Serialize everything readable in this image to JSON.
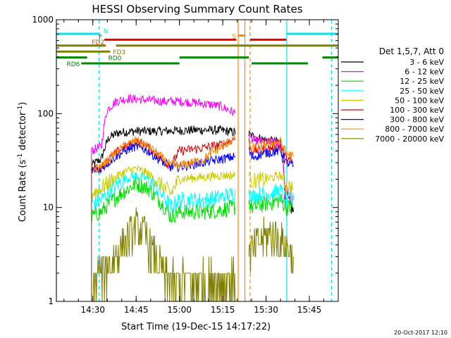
{
  "chart_data": {
    "type": "line",
    "title": "HESSI Observing Summary Count Rates",
    "xlabel": "Start Time (19-Dec-15 14:17:22)",
    "ylabel_parts": [
      "Count Rate (s",
      "-1",
      " detector",
      "-1",
      ")"
    ],
    "y_scale": "log",
    "ylim": [
      1,
      1000
    ],
    "xlim": [
      "14:17:22",
      "15:55:00"
    ],
    "x_ticks": [
      "14:30",
      "14:45",
      "15:00",
      "15:15",
      "15:30",
      "15:45"
    ],
    "y_ticks": [
      "1",
      "10",
      "100",
      "1000"
    ],
    "legend_title": "Det 1,5,7, Att 0",
    "legend_position": "right",
    "timestamp": "20-Oct-2017 12:10",
    "series": [
      {
        "name": "3 - 6 keV",
        "color": "#000000",
        "points": [
          [
            "14:29:30",
            28
          ],
          [
            "14:33:00",
            33
          ],
          [
            "14:35:30",
            55
          ],
          [
            "14:39:00",
            63
          ],
          [
            "14:45:00",
            65
          ],
          [
            "14:52:00",
            65
          ],
          [
            "15:00:00",
            66
          ],
          [
            "15:08:00",
            67
          ],
          [
            "15:15:00",
            66
          ],
          [
            "15:19:30",
            63
          ],
          [
            "15:24:00",
            60
          ],
          [
            "15:25:00",
            58
          ],
          [
            "15:30:00",
            52
          ],
          [
            "15:35:00",
            50
          ],
          [
            "15:36:30",
            15
          ],
          [
            "15:38:00",
            11
          ],
          [
            "15:39:30",
            9
          ]
        ]
      },
      {
        "name": "6 - 12 keV",
        "color": "#ff00ff",
        "points": [
          [
            "14:29:30",
            40
          ],
          [
            "14:33:00",
            45
          ],
          [
            "14:35:00",
            110
          ],
          [
            "14:38:00",
            135
          ],
          [
            "14:42:00",
            145
          ],
          [
            "14:48:00",
            140
          ],
          [
            "14:55:00",
            135
          ],
          [
            "15:00:00",
            135
          ],
          [
            "15:08:00",
            128
          ],
          [
            "15:14:00",
            120
          ],
          [
            "15:19:30",
            100
          ],
          [
            "15:24:00",
            60
          ],
          [
            "15:25:00",
            52
          ],
          [
            "15:30:00",
            50
          ],
          [
            "15:35:00",
            49
          ],
          [
            "15:36:30",
            15
          ],
          [
            "15:39:00",
            13
          ]
        ]
      },
      {
        "name": "12 - 25 keV",
        "color": "#00dd00",
        "points": [
          [
            "14:29:30",
            8
          ],
          [
            "14:33:00",
            9
          ],
          [
            "14:37:00",
            12
          ],
          [
            "14:41:00",
            15
          ],
          [
            "14:45:00",
            18
          ],
          [
            "14:49:00",
            16
          ],
          [
            "14:53:00",
            12
          ],
          [
            "14:57:00",
            8
          ],
          [
            "15:00:00",
            9
          ],
          [
            "15:08:00",
            9
          ],
          [
            "15:15:00",
            9.5
          ],
          [
            "15:19:30",
            10
          ],
          [
            "15:24:00",
            12
          ],
          [
            "15:25:00",
            10
          ],
          [
            "15:30:00",
            11
          ],
          [
            "15:35:00",
            12
          ],
          [
            "15:37:00",
            10
          ],
          [
            "15:39:30",
            10
          ]
        ]
      },
      {
        "name": "25 - 50 keV",
        "color": "#00ffff",
        "points": [
          [
            "14:29:30",
            11
          ],
          [
            "14:33:00",
            12
          ],
          [
            "14:37:00",
            16
          ],
          [
            "14:41:00",
            20
          ],
          [
            "14:45:00",
            22
          ],
          [
            "14:49:00",
            20
          ],
          [
            "14:53:00",
            15
          ],
          [
            "14:57:00",
            10
          ],
          [
            "15:00:00",
            12
          ],
          [
            "15:08:00",
            12
          ],
          [
            "15:15:00",
            13
          ],
          [
            "15:19:30",
            14
          ],
          [
            "15:24:00",
            16
          ],
          [
            "15:25:00",
            13
          ],
          [
            "15:30:00",
            14
          ],
          [
            "15:35:00",
            15
          ],
          [
            "15:37:00",
            12
          ],
          [
            "15:39:30",
            12
          ]
        ]
      },
      {
        "name": "50 - 100 keV",
        "color": "#cccc00",
        "points": [
          [
            "14:29:30",
            14
          ],
          [
            "14:33:00",
            16
          ],
          [
            "14:37:00",
            20
          ],
          [
            "14:41:00",
            24
          ],
          [
            "14:45:00",
            26
          ],
          [
            "14:49:00",
            23
          ],
          [
            "14:53:00",
            18
          ],
          [
            "14:57:00",
            14
          ],
          [
            "15:00:00",
            20
          ],
          [
            "15:08:00",
            21
          ],
          [
            "15:15:00",
            22
          ],
          [
            "15:19:30",
            22
          ],
          [
            "15:24:00",
            24
          ],
          [
            "15:25:00",
            19
          ],
          [
            "15:30:00",
            20
          ],
          [
            "15:35:00",
            22
          ],
          [
            "15:37:00",
            17
          ],
          [
            "15:39:30",
            16
          ]
        ]
      },
      {
        "name": "100 - 300 keV",
        "color": "#dd0000",
        "points": [
          [
            "14:29:30",
            25
          ],
          [
            "14:33:00",
            27
          ],
          [
            "14:37:00",
            36
          ],
          [
            "14:41:00",
            44
          ],
          [
            "14:45:00",
            50
          ],
          [
            "14:49:00",
            44
          ],
          [
            "14:53:00",
            34
          ],
          [
            "14:57:00",
            27
          ],
          [
            "15:00:00",
            40
          ],
          [
            "15:08:00",
            43
          ],
          [
            "15:15:00",
            47
          ],
          [
            "15:19:30",
            55
          ],
          [
            "15:24:00",
            50
          ],
          [
            "15:25:00",
            40
          ],
          [
            "15:30:00",
            42
          ],
          [
            "15:35:00",
            45
          ],
          [
            "15:37:00",
            33
          ],
          [
            "15:39:30",
            30
          ]
        ]
      },
      {
        "name": "300 - 800 keV",
        "color": "#0000ff",
        "points": [
          [
            "14:29:30",
            25
          ],
          [
            "14:33:00",
            26
          ],
          [
            "14:37:00",
            33
          ],
          [
            "14:41:00",
            40
          ],
          [
            "14:45:00",
            45
          ],
          [
            "14:49:00",
            40
          ],
          [
            "14:53:00",
            32
          ],
          [
            "14:57:00",
            27
          ],
          [
            "15:00:00",
            27
          ],
          [
            "15:08:00",
            30
          ],
          [
            "15:15:00",
            33
          ],
          [
            "15:19:30",
            35
          ],
          [
            "15:24:00",
            42
          ],
          [
            "15:25:00",
            34
          ],
          [
            "15:30:00",
            38
          ],
          [
            "15:35:00",
            40
          ],
          [
            "15:37:00",
            30
          ],
          [
            "15:39:30",
            28
          ]
        ]
      },
      {
        "name": "800 - 7000 keV",
        "color": "#ff8800",
        "points": [
          [
            "14:29:30",
            26
          ],
          [
            "14:33:00",
            27
          ],
          [
            "14:37:00",
            36
          ],
          [
            "14:41:00",
            45
          ],
          [
            "14:45:00",
            52
          ],
          [
            "14:49:00",
            45
          ],
          [
            "14:53:00",
            36
          ],
          [
            "14:57:00",
            28
          ],
          [
            "15:00:00",
            28
          ],
          [
            "15:08:00",
            32
          ],
          [
            "15:15:00",
            45
          ],
          [
            "15:19:30",
            55
          ],
          [
            "15:24:00",
            45
          ],
          [
            "15:25:00",
            42
          ],
          [
            "15:30:00",
            48
          ],
          [
            "15:35:00",
            50
          ],
          [
            "15:37:00",
            38
          ],
          [
            "15:39:30",
            35
          ]
        ]
      },
      {
        "name": "7000 - 20000 keV",
        "color": "#808000",
        "points": [
          [
            "14:29:30",
            1
          ],
          [
            "14:32:00",
            2
          ],
          [
            "14:35:00",
            2.2
          ],
          [
            "14:38:00",
            3
          ],
          [
            "14:42:00",
            4.5
          ],
          [
            "14:45:00",
            6
          ],
          [
            "14:48:00",
            5
          ],
          [
            "14:51:00",
            3
          ],
          [
            "14:54:00",
            2
          ],
          [
            "14:57:00",
            1.6
          ],
          [
            "15:00:00",
            1.6
          ],
          [
            "15:08:00",
            1.6
          ],
          [
            "15:15:00",
            1.6
          ],
          [
            "15:19:30",
            1.7
          ],
          [
            "15:24:00",
            3
          ],
          [
            "15:27:00",
            4
          ],
          [
            "15:30:00",
            5
          ],
          [
            "15:33:00",
            5
          ],
          [
            "15:36:00",
            4
          ],
          [
            "15:39:30",
            3
          ]
        ]
      }
    ],
    "flag_bars": [
      {
        "label": "N",
        "color": "#00e5ee",
        "label_color": "#00e5ee",
        "segments": [
          [
            "14:17:22",
            "14:32:10"
          ],
          [
            "15:37:10",
            "15:55:00"
          ]
        ],
        "level": 0
      },
      {
        "label": "S",
        "color": "#ff8800",
        "label_color": "#ff8800",
        "segments": [
          [
            "15:20:20",
            "15:22:40"
          ]
        ],
        "level": 0.3
      },
      {
        "label": "F",
        "color": "#ee0000",
        "label_color": "#ee0000",
        "segments": [
          [
            "14:34:00",
            "15:19:40"
          ],
          [
            "15:24:30",
            "15:37:00"
          ]
        ],
        "level": 1
      },
      {
        "label": "FD2",
        "color": "#808000",
        "label_color": "#cc5500",
        "segments": [
          [
            "14:17:22",
            "14:34:30"
          ],
          [
            "14:38:00",
            "15:55:00"
          ]
        ],
        "level": 2
      },
      {
        "label": "FD3",
        "color": "#808000",
        "label_color": "#808000",
        "segments": [
          [
            "14:17:22",
            "14:36:00"
          ]
        ],
        "level": 3
      },
      {
        "label": "RD0",
        "color": "#008800",
        "label_color": "#008800",
        "segments": [
          [
            "14:17:22",
            "14:28:00"
          ],
          [
            "15:00:00",
            "15:24:00"
          ],
          [
            "15:49:30",
            "15:55:00"
          ]
        ],
        "level": 4
      },
      {
        "label": "RD6",
        "color": "#008800",
        "label_color": "#008800",
        "segments": [
          [
            "14:26:00",
            "15:00:00"
          ],
          [
            "15:25:00",
            "15:44:30"
          ]
        ],
        "level": 5
      }
    ],
    "vertical_markers": [
      {
        "time": "14:17:22",
        "color": "#00e5ee",
        "style": "solid"
      },
      {
        "time": "14:32:10",
        "color": "#00e5ee",
        "style": "dashed"
      },
      {
        "time": "15:20:20",
        "color": "#ff8800",
        "style": "solid"
      },
      {
        "time": "15:22:40",
        "color": "#ff8800",
        "style": "solid"
      },
      {
        "time": "15:24:30",
        "color": "#ff8800",
        "style": "dashed"
      },
      {
        "time": "15:37:10",
        "color": "#00e5ee",
        "style": "solid"
      },
      {
        "time": "15:52:40",
        "color": "#00e5ee",
        "style": "dashed"
      }
    ]
  }
}
